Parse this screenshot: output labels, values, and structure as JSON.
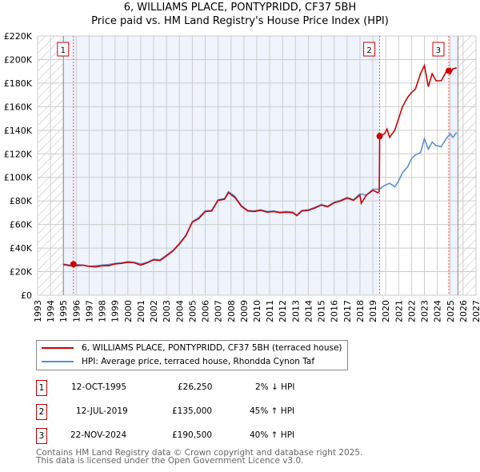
{
  "title_line1": "6, WILLIAMS PLACE, PONTYPRIDD, CF37 5BH",
  "title_line2": "Price paid vs. HM Land Registry's House Price Index (HPI)",
  "chart_data": {
    "type": "line",
    "xlim": [
      1993,
      2027
    ],
    "ylim": [
      0,
      220000
    ],
    "yticks": [
      0,
      20000,
      40000,
      60000,
      80000,
      100000,
      120000,
      140000,
      160000,
      180000,
      200000,
      220000
    ],
    "ytick_labels": [
      "£0",
      "£20K",
      "£40K",
      "£60K",
      "£80K",
      "£100K",
      "£120K",
      "£140K",
      "£160K",
      "£180K",
      "£200K",
      "£220K"
    ],
    "xticks": [
      1993,
      1994,
      1995,
      1996,
      1997,
      1998,
      1999,
      2000,
      2001,
      2002,
      2003,
      2004,
      2005,
      2006,
      2007,
      2008,
      2009,
      2010,
      2011,
      2012,
      2013,
      2014,
      2015,
      2016,
      2017,
      2018,
      2019,
      2020,
      2021,
      2022,
      2023,
      2024,
      2025,
      2026,
      2027
    ],
    "colors": {
      "price": "#cc0000",
      "hpi": "#5b8fd6",
      "shade": "#eef3fc"
    },
    "series": [
      {
        "name": "HPI: Average price, terraced house, Rhondda Cynon Taf",
        "key": "hpi",
        "x": [
          1995,
          1995.5,
          1996,
          1996.5,
          1997,
          1997.5,
          1998,
          1998.5,
          1999,
          1999.5,
          2000,
          2000.5,
          2001,
          2001.5,
          2002,
          2002.5,
          2003,
          2003.5,
          2004,
          2004.5,
          2005,
          2005.5,
          2006,
          2006.5,
          2007,
          2007.5,
          2007.8,
          2008.3,
          2008.8,
          2009.3,
          2009.8,
          2010.3,
          2010.8,
          2011.3,
          2011.8,
          2012.3,
          2012.8,
          2013.1,
          2013.5,
          2014,
          2014.5,
          2015,
          2015.5,
          2016,
          2016.5,
          2017,
          2017.5,
          2018,
          2018.5,
          2019,
          2019.5,
          2019.9,
          2020.3,
          2020.7,
          2021,
          2021.3,
          2021.7,
          2022,
          2022.3,
          2022.7,
          2023,
          2023.3,
          2023.6,
          2023.9,
          2024.3,
          2024.7,
          2025,
          2025.2,
          2025.5
        ],
        "y": [
          26500,
          25500,
          26000,
          25500,
          24500,
          25000,
          25500,
          26000,
          27000,
          27500,
          28500,
          28000,
          26500,
          28000,
          30500,
          30000,
          34000,
          38000,
          44000,
          51000,
          62500,
          66000,
          71500,
          72000,
          81000,
          82000,
          88000,
          84000,
          76000,
          72000,
          71500,
          72500,
          71000,
          71500,
          70500,
          71000,
          70500,
          68000,
          72000,
          72500,
          74500,
          77000,
          75500,
          79000,
          80500,
          83000,
          81000,
          86000,
          85000,
          90000,
          90000,
          93000,
          95000,
          92000,
          97000,
          104000,
          109000,
          116000,
          119000,
          121000,
          133000,
          124000,
          130000,
          127000,
          126000,
          133000,
          137000,
          134000,
          138000
        ]
      },
      {
        "name": "6, WILLIAMS PLACE, PONTYPRIDD, CF37 5BH (terraced house)",
        "key": "price",
        "x": [
          1995,
          1995.5,
          1995.78,
          1996,
          1996.5,
          1997,
          1997.5,
          1998,
          1998.5,
          1999,
          1999.5,
          2000,
          2000.5,
          2001,
          2001.5,
          2002,
          2002.5,
          2003,
          2003.5,
          2004,
          2004.5,
          2005,
          2005.5,
          2006,
          2006.5,
          2007,
          2007.5,
          2007.8,
          2008.3,
          2008.8,
          2009.3,
          2009.8,
          2010.3,
          2010.8,
          2011.3,
          2011.8,
          2012.3,
          2012.8,
          2013.1,
          2013.5,
          2014,
          2014.5,
          2015,
          2015.5,
          2016,
          2016.5,
          2017,
          2017.5,
          2018,
          2018.1,
          2018.5,
          2019,
          2019.4,
          2019.5,
          2019.53,
          2019.9,
          2020.1,
          2020.3,
          2020.7,
          2021,
          2021.3,
          2021.7,
          2022,
          2022.3,
          2022.7,
          2023,
          2023.3,
          2023.6,
          2023.9,
          2024.3,
          2024.7,
          2024.89,
          2025,
          2025.2,
          2025.5
        ],
        "y": [
          26000,
          25000,
          26250,
          25000,
          25500,
          24500,
          24000,
          25000,
          25000,
          26500,
          27000,
          28000,
          27500,
          25500,
          27500,
          30000,
          29500,
          33500,
          37500,
          43500,
          50500,
          62000,
          65000,
          71000,
          71500,
          80500,
          81500,
          87000,
          83000,
          75500,
          71500,
          71000,
          72000,
          70500,
          71000,
          70000,
          70500,
          70000,
          67500,
          71500,
          72000,
          74000,
          76500,
          75000,
          78500,
          80000,
          82500,
          80500,
          85000,
          78000,
          85000,
          89000,
          87000,
          88000,
          135000,
          137000,
          141000,
          134000,
          140000,
          150000,
          160000,
          168000,
          172000,
          175000,
          188000,
          195000,
          177000,
          188000,
          182000,
          182000,
          190000,
          190500,
          188000,
          192000,
          193000
        ]
      }
    ],
    "sales": [
      {
        "label": "1",
        "x": 1995.78,
        "price": 26250
      },
      {
        "label": "2",
        "x": 2019.53,
        "price": 135000
      },
      {
        "label": "3",
        "x": 2024.89,
        "price": 190500
      }
    ]
  },
  "legend": {
    "price": "6, WILLIAMS PLACE, PONTYPRIDD, CF37 5BH (terraced house)",
    "hpi": "HPI: Average price, terraced house, Rhondda Cynon Taf"
  },
  "table": [
    {
      "n": "1",
      "date": "12-OCT-1995",
      "price": "£26,250",
      "hpi": "2% ↓ HPI"
    },
    {
      "n": "2",
      "date": "12-JUL-2019",
      "price": "£135,000",
      "hpi": "45% ↑ HPI"
    },
    {
      "n": "3",
      "date": "22-NOV-2024",
      "price": "£190,500",
      "hpi": "40% ↑ HPI"
    }
  ],
  "footer": {
    "line1": "Contains HM Land Registry data © Crown copyright and database right 2025.",
    "line2": "This data is licensed under the Open Government Licence v3.0."
  }
}
